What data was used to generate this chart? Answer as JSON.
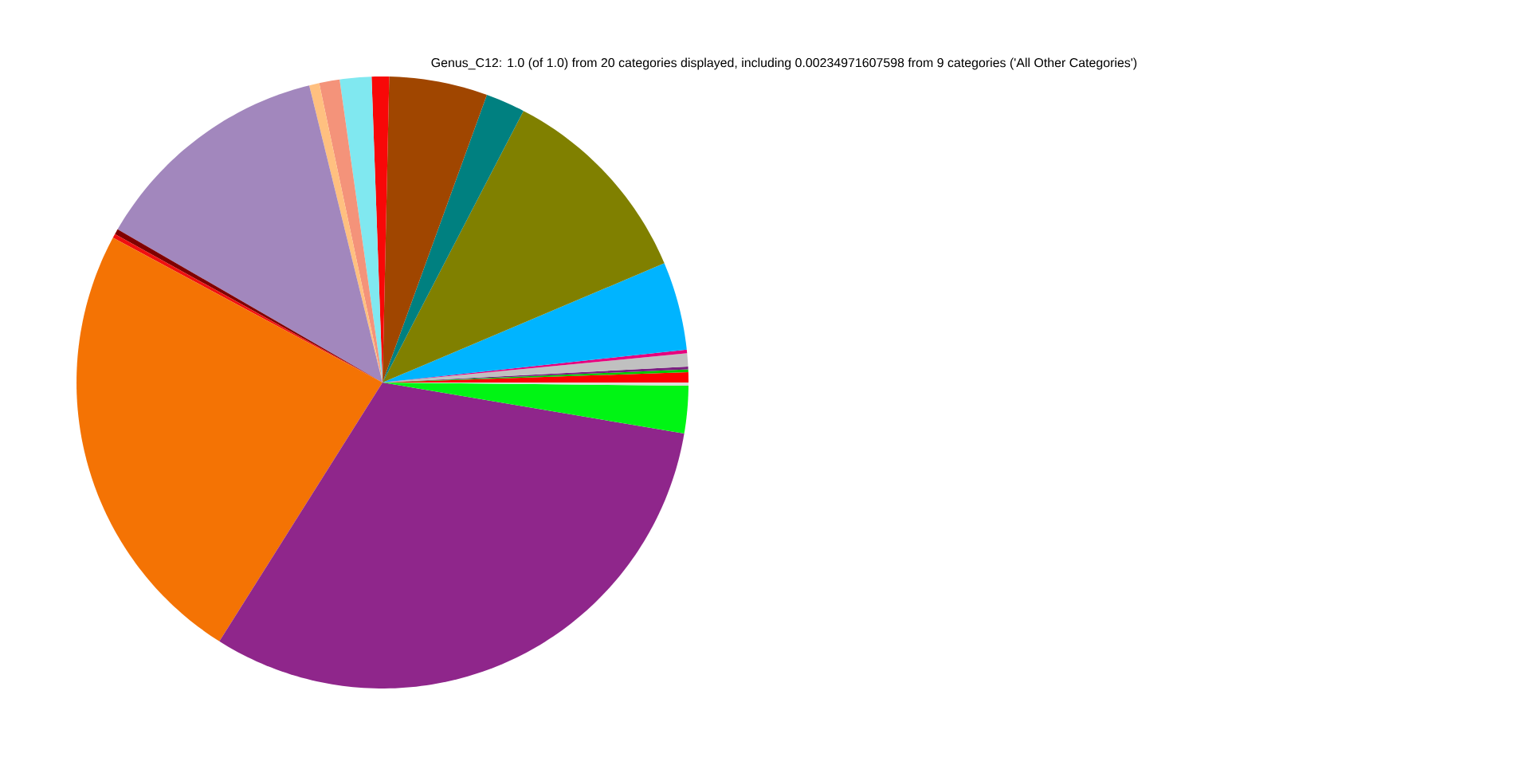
{
  "chart_data": {
    "type": "pie",
    "title": "Genus_C12: 1.0 (of 1.0) from 20 categories displayed, including 0.00234971607598 from 9 categories ('All Other Categories')",
    "categories": [
      null,
      null,
      null,
      null,
      null,
      null,
      null,
      null,
      null,
      null,
      null,
      null,
      null,
      null,
      null,
      null,
      null,
      null,
      null,
      null
    ],
    "values": [
      0.54,
      0.14,
      0.15,
      0.69,
      0.19,
      4.66,
      11.01,
      2.08,
      5.19,
      0.92,
      1.67,
      1.08,
      0.53,
      12.81,
      0.28,
      0.22,
      23.89,
      31.28,
      2.5,
      0.17
    ],
    "colors": [
      "#ff0000",
      "#00c800",
      "#7a1f80",
      "#c0c0c0",
      "#e6007e",
      "#00b4ff",
      "#808000",
      "#008080",
      "#a04600",
      "#f80808",
      "#80e8f0",
      "#f4937a",
      "#ffc080",
      "#a287bd",
      "#800000",
      "#f01010",
      "#f47304",
      "#8f268b",
      "#00f514",
      "#dcdcdc"
    ]
  }
}
